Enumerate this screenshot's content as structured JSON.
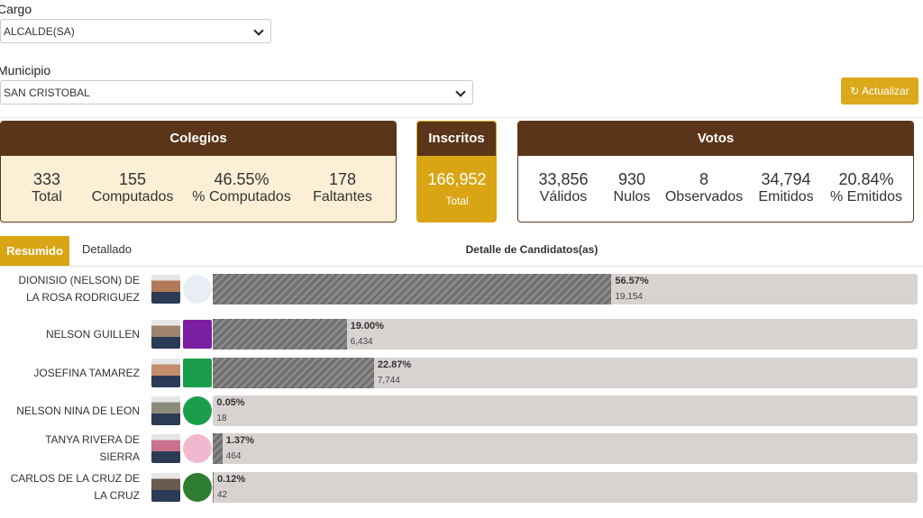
{
  "filters": [
    {
      "label": "Cargo",
      "value": "ALCALDE(SA)"
    },
    {
      "label": "Municipio",
      "value": "SAN CRISTOBAL"
    }
  ],
  "refresh_button": "Actualizar",
  "colegios": {
    "title": "Colegios",
    "stats": [
      {
        "value": "333",
        "label": "Total"
      },
      {
        "value": "155",
        "label": "Computados"
      },
      {
        "value": "46.55%",
        "label": "% Computados"
      },
      {
        "value": "178",
        "label": "Faltantes"
      }
    ]
  },
  "inscritos": {
    "title": "Inscritos",
    "value": "166,952",
    "label": "Total"
  },
  "votos": {
    "title": "Votos",
    "stats": [
      {
        "value": "33,856",
        "label": "Válidos"
      },
      {
        "value": "930",
        "label": "Nulos"
      },
      {
        "value": "8",
        "label": "Observados"
      },
      {
        "value": "34,794",
        "label": "Emitidos"
      },
      {
        "value": "20.84%",
        "label": "% Emitidos"
      }
    ]
  },
  "tabs": [
    "Resumido",
    "Detallado"
  ],
  "section_title": "Detalle de Candidatos(as)",
  "candidates": {
    "xlim": [
      0,
      100
    ],
    "items": [
      {
        "name": "DIONISIO (NELSON) DE LA ROSA RODRIGUEZ",
        "percent": 56.57,
        "percent_label": "56.57%",
        "votes": "19,154"
      },
      {
        "name": "NELSON GUILLEN",
        "percent": 19.0,
        "percent_label": "19.00%",
        "votes": "6,434"
      },
      {
        "name": "JOSEFINA TAMAREZ",
        "percent": 22.87,
        "percent_label": "22.87%",
        "votes": "7,744"
      },
      {
        "name": "NELSON NINA DE LEON",
        "percent": 0.05,
        "percent_label": "0.05%",
        "votes": "18"
      },
      {
        "name": "TANYA RIVERA DE SIERRA",
        "percent": 1.37,
        "percent_label": "1.37%",
        "votes": "464"
      },
      {
        "name": "CARLOS DE LA CRUZ DE LA CRUZ",
        "percent": 0.12,
        "percent_label": "0.12%",
        "votes": "42"
      }
    ]
  }
}
